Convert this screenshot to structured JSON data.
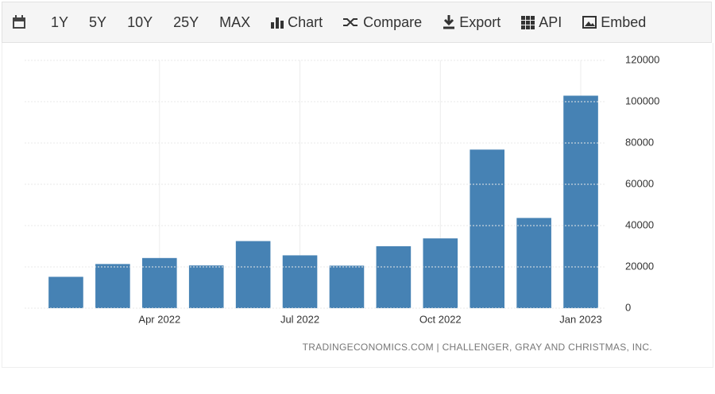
{
  "toolbar": {
    "buttons": [
      "1Y",
      "5Y",
      "10Y",
      "25Y",
      "MAX",
      "Chart",
      "Compare",
      "Export",
      "API",
      "Embed"
    ]
  },
  "chart_data": {
    "type": "bar",
    "source": "TRADINGECONOMICS.COM | CHALLENGER, GRAY AND CHRISTMAS, INC.",
    "categories": [
      null,
      null,
      "Apr 2022",
      null,
      null,
      "Jul 2022",
      null,
      null,
      "Oct 2022",
      null,
      null,
      "Jan 2023"
    ],
    "values": [
      15200,
      21400,
      24300,
      20700,
      32500,
      25600,
      20600,
      30000,
      33800,
      76800,
      43700,
      102900
    ],
    "color": "#4682b4",
    "ylim": [
      0,
      120000
    ],
    "yticks": [
      0,
      20000,
      40000,
      60000,
      80000,
      100000,
      120000
    ],
    "grid": true
  }
}
